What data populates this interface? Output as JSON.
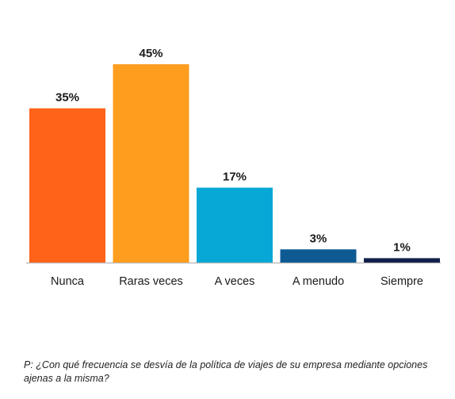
{
  "chart_data": {
    "type": "bar",
    "categories": [
      "Nunca",
      "Raras veces",
      "A veces",
      "A menudo",
      "Siempre"
    ],
    "values": [
      35,
      45,
      17,
      3,
      1
    ],
    "data_labels": [
      "35%",
      "45%",
      "17%",
      "3%",
      "1%"
    ],
    "colors": [
      "#ff6319",
      "#ff9d1e",
      "#08a8d6",
      "#0e5b94",
      "#10204a"
    ],
    "ylim": [
      0,
      45
    ],
    "grid": false,
    "legend": "none"
  },
  "footnote": "P: ¿Con qué frecuencia se desvía de la política de viajes de su empresa mediante opciones ajenas a la misma?"
}
